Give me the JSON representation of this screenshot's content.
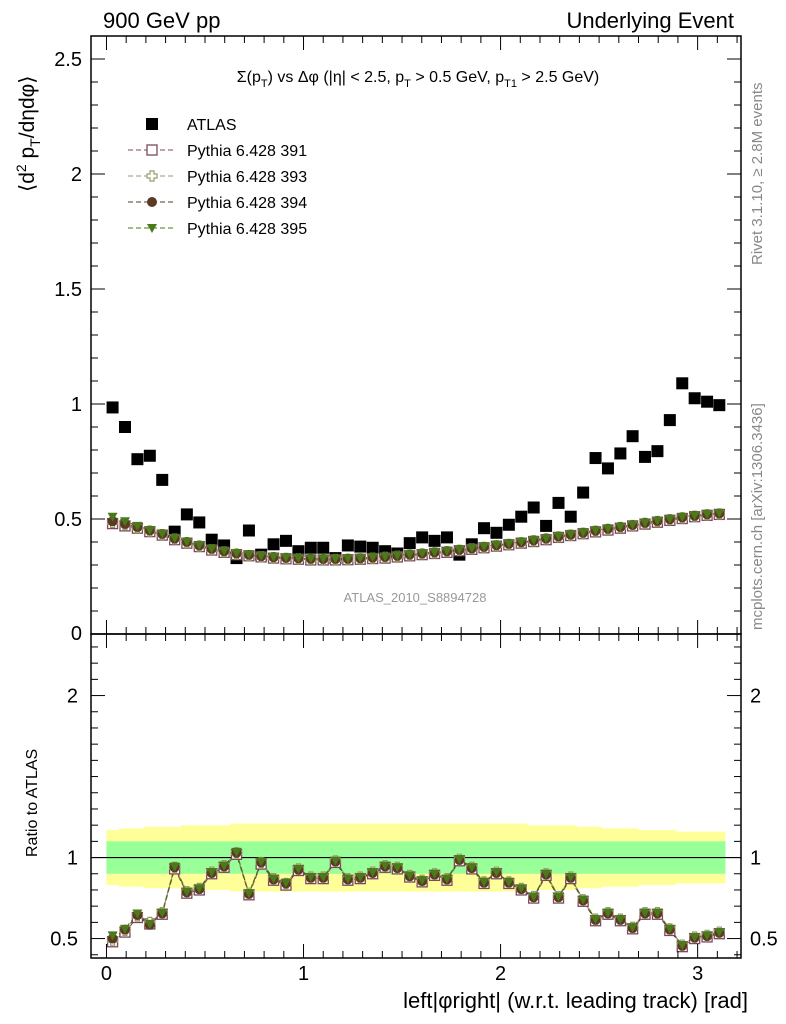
{
  "header": {
    "left": "900 GeV pp",
    "right": "Underlying Event"
  },
  "side_labels": {
    "rivet": "Rivet 3.1.10, ≥ 2.8M events",
    "mcplots": "mcplots.cern.ch [arXiv:1306.3436]"
  },
  "watermark": "ATLAS_2010_S8894728",
  "colors": {
    "atlas": "#000000",
    "p391": "#7b4a5a",
    "p393": "#9a9a6a",
    "p394": "#5a3a22",
    "p395": "#4a7a1a",
    "band_inner": "#99ff99",
    "band_outer": "#ffff99"
  },
  "chart_data": [
    {
      "type": "scatter",
      "panel": "main",
      "title": "Σ(p_T) vs Δφ (|η| < 2.5, p_T > 0.5 GeV, p_T1 > 2.5 GeV)",
      "title_parts": {
        "sigma": "Σ(p",
        "sub_t": "T",
        "mid": ") vs Δφ (|η| < 2.5, p",
        "mid2": " > 0.5 GeV, p",
        "sub_t1": "T1",
        "end": " > 2.5 GeV)"
      },
      "ylabel": "⟨d² p_T/dηdφ⟩",
      "ylabel_parts": {
        "a": "⟨d",
        "sup": "2",
        "b": " p",
        "sub": "T",
        "c": "/dηdφ⟩"
      },
      "xlim": [
        -0.0785,
        3.2201
      ],
      "ylim": [
        0,
        2.6
      ],
      "yticks": [
        "0.5",
        "1",
        "1.5",
        "2",
        "2.5"
      ],
      "ytick_values": [
        0.5,
        1,
        1.5,
        2,
        2.5
      ],
      "ytick_zero": "0",
      "legend_position": "top-left",
      "x": [
        0.031,
        0.094,
        0.157,
        0.22,
        0.283,
        0.346,
        0.408,
        0.471,
        0.534,
        0.597,
        0.66,
        0.723,
        0.785,
        0.848,
        0.911,
        0.974,
        1.037,
        1.1,
        1.162,
        1.225,
        1.288,
        1.351,
        1.414,
        1.476,
        1.539,
        1.602,
        1.665,
        1.728,
        1.791,
        1.854,
        1.916,
        1.979,
        2.042,
        2.105,
        2.168,
        2.231,
        2.294,
        2.356,
        2.419,
        2.482,
        2.545,
        2.608,
        2.67,
        2.733,
        2.796,
        2.859,
        2.922,
        2.985,
        3.048,
        3.11
      ],
      "series": [
        {
          "name": "ATLAS",
          "marker": "square-filled",
          "values": [
            0.985,
            0.9,
            0.76,
            0.775,
            0.67,
            0.445,
            0.52,
            0.485,
            0.41,
            0.385,
            0.33,
            0.45,
            0.345,
            0.39,
            0.405,
            0.36,
            0.375,
            0.375,
            0.33,
            0.385,
            0.38,
            0.375,
            0.36,
            0.35,
            0.395,
            0.42,
            0.405,
            0.42,
            0.345,
            0.39,
            0.46,
            0.44,
            0.475,
            0.51,
            0.55,
            0.47,
            0.57,
            0.51,
            0.615,
            0.765,
            0.72,
            0.785,
            0.86,
            0.77,
            0.795,
            0.93,
            1.09,
            1.025,
            1.01,
            0.995
          ]
        },
        {
          "name": "Pythia 6.428 391",
          "marker": "square-open",
          "values": [
            0.48,
            0.47,
            0.46,
            0.445,
            0.43,
            0.41,
            0.395,
            0.38,
            0.365,
            0.355,
            0.345,
            0.34,
            0.335,
            0.33,
            0.327,
            0.325,
            0.322,
            0.322,
            0.322,
            0.323,
            0.325,
            0.328,
            0.33,
            0.335,
            0.34,
            0.345,
            0.35,
            0.355,
            0.362,
            0.368,
            0.375,
            0.382,
            0.388,
            0.395,
            0.402,
            0.41,
            0.42,
            0.428,
            0.436,
            0.444,
            0.452,
            0.46,
            0.47,
            0.478,
            0.486,
            0.494,
            0.502,
            0.51,
            0.516,
            0.52
          ]
        },
        {
          "name": "Pythia 6.428 393",
          "marker": "cross-open",
          "values": [
            0.485,
            0.475,
            0.462,
            0.447,
            0.432,
            0.413,
            0.397,
            0.382,
            0.367,
            0.357,
            0.347,
            0.341,
            0.336,
            0.332,
            0.329,
            0.327,
            0.325,
            0.324,
            0.324,
            0.325,
            0.327,
            0.33,
            0.333,
            0.338,
            0.343,
            0.348,
            0.353,
            0.358,
            0.364,
            0.37,
            0.377,
            0.384,
            0.39,
            0.397,
            0.405,
            0.413,
            0.422,
            0.43,
            0.438,
            0.447,
            0.455,
            0.463,
            0.472,
            0.481,
            0.489,
            0.497,
            0.505,
            0.512,
            0.518,
            0.522
          ]
        },
        {
          "name": "Pythia 6.428 394",
          "marker": "circle-filled",
          "values": [
            0.49,
            0.478,
            0.465,
            0.45,
            0.435,
            0.415,
            0.4,
            0.385,
            0.37,
            0.36,
            0.35,
            0.344,
            0.338,
            0.334,
            0.331,
            0.329,
            0.327,
            0.326,
            0.326,
            0.327,
            0.329,
            0.332,
            0.335,
            0.34,
            0.345,
            0.35,
            0.355,
            0.36,
            0.366,
            0.372,
            0.379,
            0.386,
            0.392,
            0.399,
            0.407,
            0.415,
            0.424,
            0.432,
            0.44,
            0.449,
            0.457,
            0.465,
            0.474,
            0.483,
            0.491,
            0.499,
            0.507,
            0.514,
            0.52,
            0.524
          ]
        },
        {
          "name": "Pythia 6.428 395",
          "marker": "triangle-down-filled",
          "values": [
            0.51,
            0.49,
            0.47,
            0.452,
            0.437,
            0.418,
            0.402,
            0.387,
            0.372,
            0.362,
            0.352,
            0.346,
            0.34,
            0.336,
            0.333,
            0.331,
            0.329,
            0.328,
            0.328,
            0.329,
            0.331,
            0.334,
            0.337,
            0.342,
            0.347,
            0.352,
            0.357,
            0.362,
            0.368,
            0.374,
            0.381,
            0.388,
            0.394,
            0.401,
            0.409,
            0.417,
            0.426,
            0.434,
            0.442,
            0.451,
            0.459,
            0.467,
            0.476,
            0.485,
            0.493,
            0.501,
            0.509,
            0.516,
            0.522,
            0.526
          ]
        }
      ]
    },
    {
      "type": "scatter",
      "panel": "ratio",
      "ylabel": "Ratio to ATLAS",
      "xlabel": "left|φright| (w.r.t. leading track) [rad]",
      "xlabel_parts": {
        "a": "left|",
        "phi": "φ",
        "b": "right| (w.r.t. leading track) [rad]"
      },
      "xlim": [
        -0.0785,
        3.2201
      ],
      "ylim": [
        0.38,
        2.38
      ],
      "xticks": [
        "0",
        "1",
        "2",
        "3"
      ],
      "xtick_values": [
        0,
        1,
        2,
        3
      ],
      "yticks": [
        "0.5",
        "1",
        "2"
      ],
      "ytick_values": [
        0.5,
        1,
        2
      ],
      "reference_line": 1,
      "band_inner_halfwidth": [
        0.1,
        0.1,
        0.1,
        0.1,
        0.1,
        0.1,
        0.1,
        0.1,
        0.1,
        0.1,
        0.1,
        0.1,
        0.1,
        0.1,
        0.1,
        0.1,
        0.1,
        0.1,
        0.1,
        0.1,
        0.1,
        0.1,
        0.1,
        0.1,
        0.1,
        0.1,
        0.1,
        0.1,
        0.1,
        0.1,
        0.1,
        0.1,
        0.1,
        0.1,
        0.1,
        0.1,
        0.1,
        0.1,
        0.1,
        0.1,
        0.1,
        0.1,
        0.1,
        0.1,
        0.1,
        0.1,
        0.1,
        0.1,
        0.1,
        0.1
      ],
      "band_outer_halfwidth": [
        0.17,
        0.18,
        0.18,
        0.19,
        0.19,
        0.19,
        0.2,
        0.2,
        0.2,
        0.2,
        0.21,
        0.21,
        0.21,
        0.21,
        0.21,
        0.21,
        0.21,
        0.21,
        0.21,
        0.21,
        0.21,
        0.21,
        0.21,
        0.21,
        0.21,
        0.21,
        0.21,
        0.21,
        0.21,
        0.21,
        0.21,
        0.21,
        0.21,
        0.21,
        0.2,
        0.2,
        0.2,
        0.2,
        0.19,
        0.19,
        0.18,
        0.18,
        0.18,
        0.17,
        0.17,
        0.17,
        0.16,
        0.16,
        0.16,
        0.16
      ],
      "series": [
        {
          "name": "Pythia 6.428 391",
          "marker": "square-open",
          "values": [
            0.48,
            0.54,
            0.63,
            0.59,
            0.65,
            0.93,
            0.78,
            0.8,
            0.9,
            0.94,
            1.02,
            0.77,
            0.96,
            0.86,
            0.83,
            0.92,
            0.87,
            0.87,
            0.97,
            0.86,
            0.87,
            0.9,
            0.94,
            0.93,
            0.88,
            0.85,
            0.89,
            0.86,
            0.98,
            0.93,
            0.84,
            0.9,
            0.84,
            0.8,
            0.75,
            0.89,
            0.75,
            0.87,
            0.73,
            0.61,
            0.65,
            0.61,
            0.56,
            0.65,
            0.65,
            0.55,
            0.45,
            0.5,
            0.51,
            0.53
          ]
        },
        {
          "name": "Pythia 6.428 393",
          "marker": "cross-open",
          "values": [
            0.49,
            0.55,
            0.64,
            0.6,
            0.66,
            0.94,
            0.79,
            0.81,
            0.91,
            0.95,
            1.03,
            0.78,
            0.97,
            0.87,
            0.84,
            0.93,
            0.88,
            0.88,
            0.98,
            0.87,
            0.88,
            0.91,
            0.95,
            0.94,
            0.89,
            0.86,
            0.9,
            0.87,
            0.99,
            0.94,
            0.85,
            0.91,
            0.85,
            0.81,
            0.76,
            0.9,
            0.76,
            0.88,
            0.74,
            0.62,
            0.66,
            0.62,
            0.57,
            0.66,
            0.66,
            0.56,
            0.46,
            0.51,
            0.52,
            0.54
          ]
        },
        {
          "name": "Pythia 6.428 394",
          "marker": "circle-filled",
          "values": [
            0.5,
            0.555,
            0.645,
            0.585,
            0.655,
            0.94,
            0.785,
            0.805,
            0.905,
            0.945,
            1.03,
            0.775,
            0.97,
            0.865,
            0.84,
            0.925,
            0.875,
            0.875,
            0.975,
            0.865,
            0.875,
            0.905,
            0.945,
            0.935,
            0.885,
            0.855,
            0.895,
            0.865,
            0.985,
            0.935,
            0.845,
            0.905,
            0.845,
            0.805,
            0.755,
            0.895,
            0.755,
            0.875,
            0.735,
            0.615,
            0.655,
            0.615,
            0.565,
            0.655,
            0.655,
            0.555,
            0.455,
            0.505,
            0.515,
            0.535
          ]
        },
        {
          "name": "Pythia 6.428 395",
          "marker": "triangle-down-filled",
          "values": [
            0.52,
            0.56,
            0.655,
            0.59,
            0.66,
            0.945,
            0.79,
            0.81,
            0.91,
            0.95,
            1.035,
            0.78,
            0.975,
            0.87,
            0.845,
            0.93,
            0.88,
            0.88,
            0.98,
            0.87,
            0.88,
            0.91,
            0.95,
            0.94,
            0.89,
            0.86,
            0.9,
            0.87,
            0.99,
            0.94,
            0.85,
            0.91,
            0.85,
            0.81,
            0.76,
            0.9,
            0.76,
            0.88,
            0.74,
            0.62,
            0.66,
            0.62,
            0.57,
            0.66,
            0.66,
            0.56,
            0.46,
            0.51,
            0.52,
            0.54
          ]
        }
      ]
    }
  ]
}
